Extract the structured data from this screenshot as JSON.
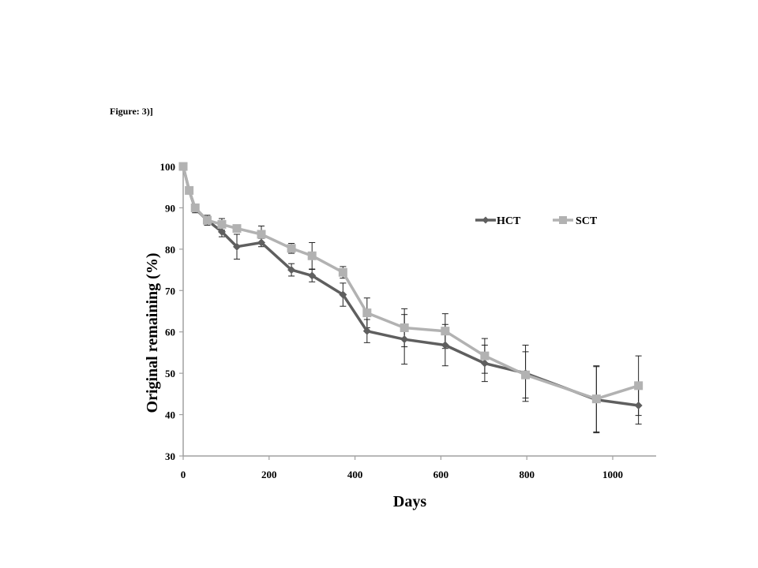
{
  "figure_label": "Figure: 3)]",
  "chart_data": {
    "type": "line",
    "title": "",
    "xlabel": "Days",
    "ylabel": "Original remaining (%)",
    "xlim": [
      0,
      1100
    ],
    "ylim": [
      30,
      100
    ],
    "xticks": [
      0,
      200,
      400,
      600,
      800,
      1000
    ],
    "yticks": [
      30,
      40,
      50,
      60,
      70,
      80,
      90,
      100
    ],
    "xtick_labels": [
      "0",
      "200",
      "400",
      "600",
      "800",
      "1000"
    ],
    "ytick_labels": [
      "30",
      "40",
      "50",
      "60",
      "70",
      "80",
      "90",
      "100"
    ],
    "grid": false,
    "legend_position": "top-right",
    "series": [
      {
        "name": "HCT",
        "color": "#5f5f5f",
        "marker": "diamond",
        "x": [
          0,
          14,
          28,
          56,
          90,
          125,
          182,
          252,
          300,
          372,
          428,
          515,
          610,
          702,
          797,
          962,
          1060
        ],
        "y": [
          100,
          94.2,
          89.8,
          87.0,
          84.2,
          80.6,
          81.6,
          75.0,
          73.6,
          69.0,
          60.2,
          58.2,
          56.8,
          52.4,
          50.0,
          43.6,
          42.2
        ],
        "err": [
          0,
          0.8,
          1.0,
          1.2,
          1.2,
          3.0,
          1.0,
          1.5,
          1.5,
          2.8,
          2.8,
          6.0,
          5.0,
          4.4,
          6.8,
          8.0,
          4.5
        ]
      },
      {
        "name": "SCT",
        "color": "#b2b2b2",
        "marker": "square",
        "x": [
          0,
          14,
          28,
          56,
          90,
          125,
          182,
          252,
          300,
          372,
          428,
          515,
          610,
          702,
          797,
          962,
          1060
        ],
        "y": [
          100,
          94.2,
          90.0,
          87.0,
          86.0,
          85.0,
          83.6,
          80.2,
          78.4,
          74.4,
          64.6,
          61.0,
          60.2,
          54.2,
          49.6,
          43.8,
          47.0
        ],
        "err": [
          0,
          0.6,
          0.6,
          0.8,
          1.4,
          0.8,
          2.0,
          1.2,
          3.2,
          1.4,
          3.6,
          4.6,
          4.2,
          4.2,
          5.6,
          8.0,
          7.2
        ]
      }
    ]
  }
}
